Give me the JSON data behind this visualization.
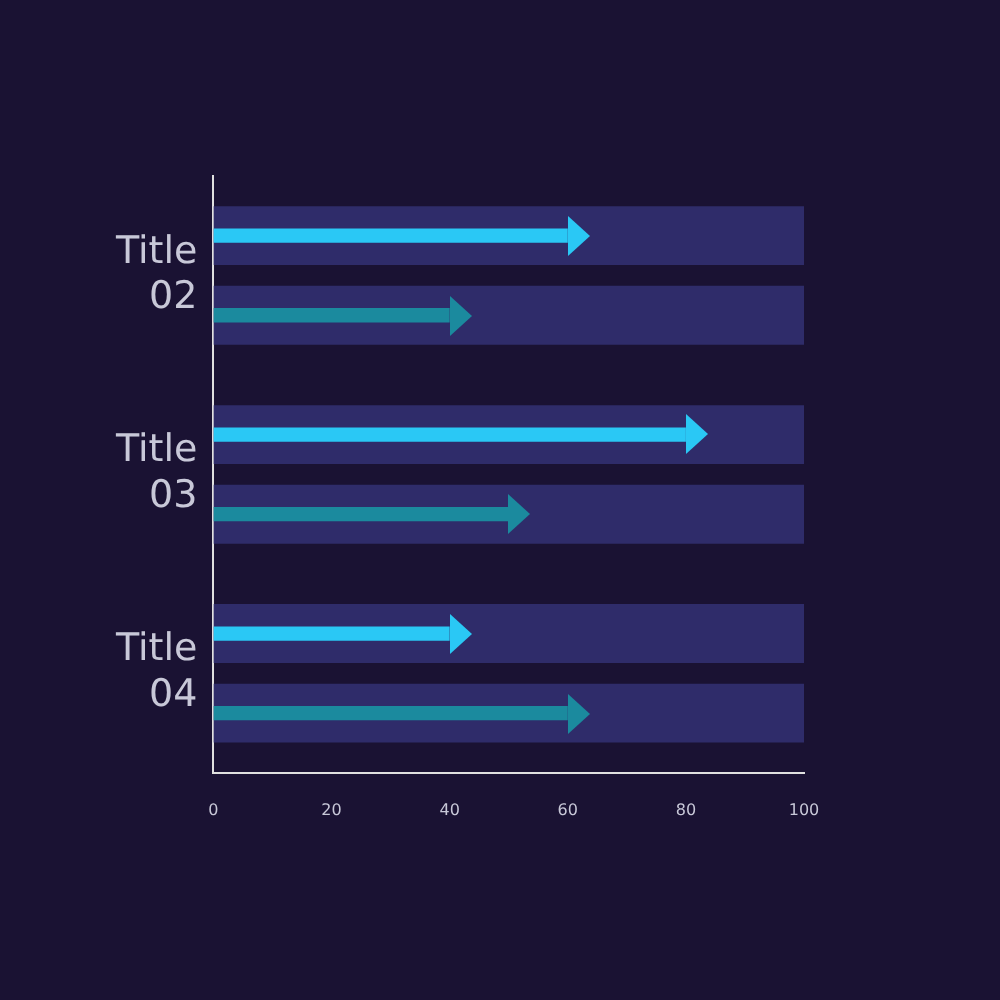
{
  "chart_data": {
    "type": "bar",
    "orientation": "horizontal",
    "categories": [
      "Title 02",
      "Title 03",
      "Title 04"
    ],
    "series": [
      {
        "color": "#2ac8f5",
        "values": [
          60,
          80,
          40
        ]
      },
      {
        "color": "#1b8a9e",
        "values": [
          40,
          50,
          60
        ]
      },
      {
        "color": "#2f2c6a",
        "values": [
          100,
          100,
          100
        ]
      },
      {
        "color": "#2f2c6a",
        "values": [
          100,
          100,
          100
        ]
      }
    ],
    "xlim": [
      0,
      100
    ],
    "xticks": [
      0,
      20,
      40,
      60,
      80,
      100
    ],
    "grid": false,
    "legend": false
  }
}
